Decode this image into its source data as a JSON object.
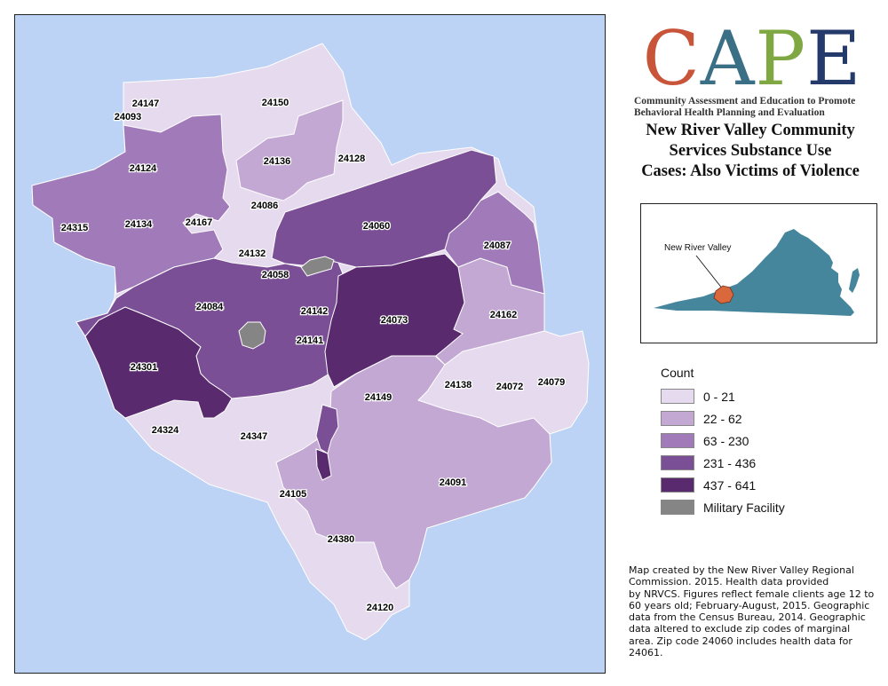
{
  "map": {
    "zip_labels": [
      "24147",
      "24093",
      "24150",
      "24124",
      "24136",
      "24128",
      "24134",
      "24167",
      "24086",
      "24315",
      "24060",
      "24087",
      "24132",
      "24058",
      "24084",
      "24142",
      "24073",
      "24162",
      "24141",
      "24301",
      "24138",
      "24072",
      "24079",
      "24149",
      "24324",
      "24347",
      "24091",
      "24105",
      "24380",
      "24120"
    ]
  },
  "logo": {
    "letters": [
      {
        "char": "C",
        "color": "#c8553a"
      },
      {
        "char": "A",
        "color": "#3a6f86"
      },
      {
        "char": "P",
        "color": "#7fa843"
      },
      {
        "char": "E",
        "color": "#243a6b"
      }
    ],
    "tagline_line1": "Community Assessment and Education to Promote",
    "tagline_line2": "Behavioral Health Planning and Evaluation"
  },
  "title": {
    "line1": "New River Valley Community",
    "line2": "Services Substance Use",
    "line3": "Cases: Also Victims of Violence"
  },
  "inset": {
    "label": "New River Valley",
    "state_color": "#45869c",
    "region_color": "#d9693d"
  },
  "legend": {
    "title": "Count",
    "items": [
      {
        "label": "0 - 21",
        "color": "#e6daee"
      },
      {
        "label": "22 - 62",
        "color": "#c2a8d2"
      },
      {
        "label": "63 - 230",
        "color": "#a07ab9"
      },
      {
        "label": "231 - 436",
        "color": "#7b4f95"
      },
      {
        "label": "437 - 641",
        "color": "#592a6e"
      },
      {
        "label": "Military Facility",
        "color": "#858585"
      }
    ]
  },
  "credits": {
    "lines": [
      "Map created by the New River Valley Regional",
      "Commission. 2015. Health data provided",
      "by NRVCS. Figures reflect female clients age 12 to",
      "60 years old; February-August, 2015. Geographic",
      "data from the Census Bureau, 2014. Geographic",
      "data altered to exclude zip codes of marginal",
      "area. Zip code 24060 includes health data for",
      "24061."
    ]
  }
}
